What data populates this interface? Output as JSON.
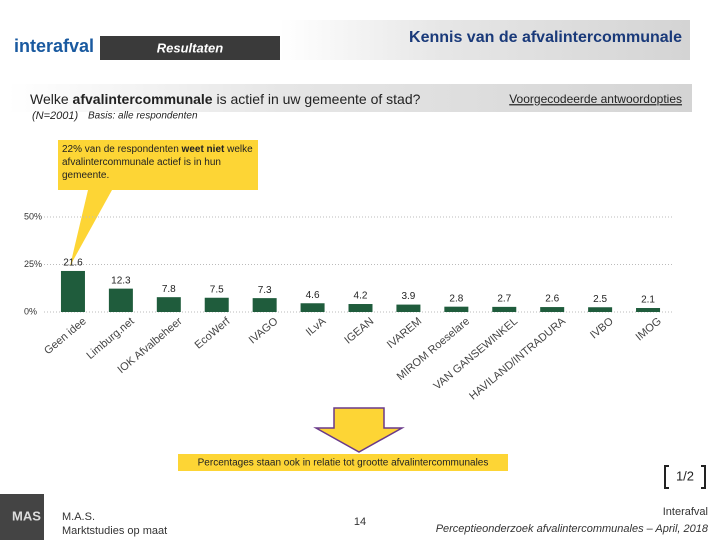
{
  "header": {
    "logo": "interafval",
    "section": "Resultaten",
    "title": "Kennis van de afvalintercommunale"
  },
  "question": {
    "pre": "Welke ",
    "bold": "afvalintercommunale",
    "post": " is actief in uw gemeente of stad?",
    "link": "Voorgecodeerde antwoordopties"
  },
  "sample": "(N=2001)",
  "basis": "Basis: alle respondenten",
  "callout": {
    "pre": "22% van de respondenten ",
    "bold": "weet niet",
    "post": " welke afvalintercommunale actief is in hun gemeente."
  },
  "note": "Percentages staan ook in relatie tot grootte afvalintercommunales",
  "page_marker": "1/2",
  "footer": {
    "logo": "MAS",
    "company": "M.A.S.",
    "tagline": "Marktstudies op maat",
    "page": "14",
    "client": "Interafval",
    "study": "Perceptieonderzoek afvalintercommunales – April, 2018"
  },
  "chart_data": {
    "type": "bar",
    "categories": [
      "Geen idee",
      "Limburg.net",
      "IOK Afvalbeheer",
      "EcoWerf",
      "IVAGO",
      "ILvA",
      "IGEAN",
      "IVAREM",
      "MIROM Roeselare",
      "VAN GANSEWINKEL",
      "HAVILAND/INTRADURA",
      "IVBO",
      "IMOG"
    ],
    "values": [
      21.6,
      12.3,
      7.8,
      7.5,
      7.3,
      4.6,
      4.2,
      3.9,
      2.8,
      2.7,
      2.6,
      2.5,
      2.1
    ],
    "color": "#1f5c3c",
    "ylim": [
      0,
      50
    ],
    "yticks": [
      {
        "value": 0,
        "label": "0%"
      },
      {
        "value": 25,
        "label": "25%"
      },
      {
        "value": 50,
        "label": "50%"
      }
    ],
    "grid": true
  }
}
